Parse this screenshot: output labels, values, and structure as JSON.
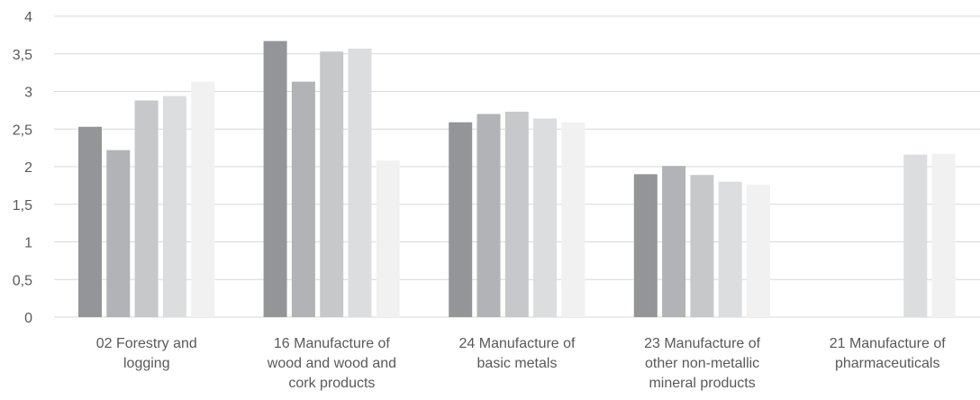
{
  "chart_data": {
    "type": "bar",
    "title": "",
    "xlabel": "",
    "ylabel": "",
    "ylim": [
      0,
      4
    ],
    "yticks": [
      "0",
      "0,5",
      "1",
      "1,5",
      "2",
      "2,5",
      "3",
      "3,5",
      "4"
    ],
    "grid": true,
    "legend": "none",
    "categories": [
      [
        "02 Forestry and",
        "logging"
      ],
      [
        "16 Manufacture of",
        "wood and wood and",
        "cork products"
      ],
      [
        "24 Manufacture of",
        "basic metals"
      ],
      [
        "23 Manufacture of",
        "other non-metallic",
        "mineral products"
      ],
      [
        "21 Manufacture of",
        "pharmaceuticals"
      ]
    ],
    "series": [
      {
        "color": "#939598",
        "values": [
          2.53,
          3.67,
          2.59,
          1.9,
          null
        ]
      },
      {
        "color": "#b1b3b6",
        "values": [
          2.22,
          3.13,
          2.7,
          2.01,
          null
        ]
      },
      {
        "color": "#c7c8ca",
        "values": [
          2.88,
          3.53,
          2.73,
          1.89,
          null
        ]
      },
      {
        "color": "#dcdddf",
        "values": [
          2.94,
          3.57,
          2.64,
          1.8,
          2.16
        ]
      },
      {
        "color": "#f1f1f2",
        "values": [
          3.13,
          2.08,
          2.59,
          1.76,
          2.17
        ]
      }
    ]
  }
}
